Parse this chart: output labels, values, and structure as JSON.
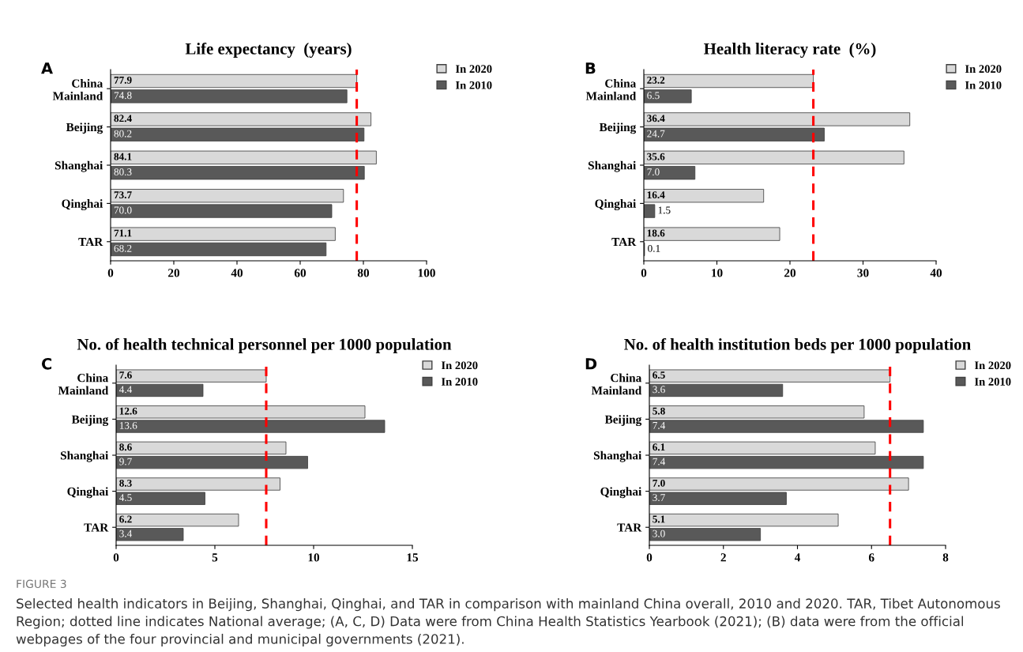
{
  "chart_data": [
    {
      "type": "bar",
      "orientation": "horizontal",
      "title": "Life expectancy  (years)",
      "categories": [
        "China\nMainland",
        "Beijing",
        "Shanghai",
        "Qinghai",
        "TAR"
      ],
      "series": [
        {
          "name": "In 2020",
          "color": "#d9d9d9",
          "values": [
            77.9,
            82.4,
            84.1,
            73.7,
            71.1
          ],
          "value_labels": [
            "77.9",
            "82.4",
            "84.1",
            "73.7",
            "71.1"
          ]
        },
        {
          "name": "In 2010",
          "color": "#595959",
          "values": [
            74.8,
            80.2,
            80.3,
            70.0,
            68.2
          ],
          "value_labels": [
            "74.8",
            "80.2",
            "80.3",
            "70.0",
            "68.2"
          ]
        }
      ],
      "xlim": [
        0,
        100
      ],
      "xticks": [
        0,
        20,
        40,
        60,
        80,
        100
      ],
      "grid": false,
      "legend": "top right",
      "ref_lines": [
        {
          "axis": "x",
          "value": 77.9,
          "color": "#ff0000",
          "line_style": "dashed"
        }
      ],
      "annotations": [
        "A",
        "FIGURE 3",
        "Selected health indicators in Beijing, Shanghai, Qinghai, and TAR in comparison with mainland China overall, 2010 and 2020. TAR, Tibet Autonomous Region; dotted line indicates National average; (A, C, D) Data were from China Health Statistics Yearbook (2021); (B) data were from the official webpages of the four provincial and municipal governments (2021)."
      ]
    },
    {
      "type": "bar",
      "orientation": "horizontal",
      "title": "Health literacy rate  (%)",
      "categories": [
        "China\nMainland",
        "Beijing",
        "Shanghai",
        "Qinghai",
        "TAR"
      ],
      "series": [
        {
          "name": "In 2020",
          "color": "#d9d9d9",
          "values": [
            23.2,
            36.4,
            35.6,
            16.4,
            18.6
          ],
          "value_labels": [
            "23.2",
            "36.4",
            "35.6",
            "16.4",
            "18.6"
          ]
        },
        {
          "name": "In 2010",
          "color": "#595959",
          "values": [
            6.5,
            24.7,
            7.0,
            1.5,
            0.1
          ],
          "value_labels": [
            "6.5",
            "24.7",
            "7.0",
            "1.5",
            "0.1"
          ]
        }
      ],
      "xlim": [
        0,
        40
      ],
      "xticks": [
        0,
        10,
        20,
        30,
        40
      ],
      "grid": false,
      "legend": "top right",
      "ref_lines": [
        {
          "axis": "x",
          "value": 23.2,
          "color": "#ff0000",
          "line_style": "dashed"
        }
      ],
      "annotations": [
        "B"
      ]
    },
    {
      "type": "bar",
      "orientation": "horizontal",
      "title": "No. of health technical personnel per 1000 population",
      "categories": [
        "China\nMainland",
        "Beijing",
        "Shanghai",
        "Qinghai",
        "TAR"
      ],
      "series": [
        {
          "name": "In 2020",
          "color": "#d9d9d9",
          "values": [
            7.6,
            12.6,
            8.6,
            8.3,
            6.2
          ],
          "value_labels": [
            "7.6",
            "12.6",
            "8.6",
            "8.3",
            "6.2"
          ]
        },
        {
          "name": "In 2010",
          "color": "#595959",
          "values": [
            4.4,
            13.6,
            9.7,
            4.5,
            3.4
          ],
          "value_labels": [
            "4.4",
            "13.6",
            "9.7",
            "4.5",
            "3.4"
          ]
        }
      ],
      "xlim": [
        0,
        15
      ],
      "xticks": [
        0,
        5,
        10,
        15
      ],
      "grid": false,
      "legend": "top right",
      "ref_lines": [
        {
          "axis": "x",
          "value": 7.6,
          "color": "#ff0000",
          "line_style": "dashed"
        }
      ],
      "annotations": [
        "C"
      ]
    },
    {
      "type": "bar",
      "orientation": "horizontal",
      "title": "No. of health institution beds per 1000 population",
      "categories": [
        "China\nMainland",
        "Beijing",
        "Shanghai",
        "Qinghai",
        "TAR"
      ],
      "series": [
        {
          "name": "In 2020",
          "color": "#d9d9d9",
          "values": [
            6.5,
            5.8,
            6.1,
            7.0,
            5.1
          ],
          "value_labels": [
            "6.5",
            "5.8",
            "6.1",
            "7.0",
            "5.1"
          ]
        },
        {
          "name": "In 2010",
          "color": "#595959",
          "values": [
            3.6,
            7.4,
            7.4,
            3.7,
            3.0
          ],
          "value_labels": [
            "3.6",
            "7.4",
            "7.4",
            "3.7",
            "3.0"
          ]
        }
      ],
      "xlim": [
        0,
        8
      ],
      "xticks": [
        0,
        2,
        4,
        6,
        8
      ],
      "grid": false,
      "legend": "top right",
      "ref_lines": [
        {
          "axis": "x",
          "value": 6.5,
          "color": "#ff0000",
          "line_style": "dashed"
        }
      ],
      "annotations": [
        "D"
      ]
    }
  ]
}
